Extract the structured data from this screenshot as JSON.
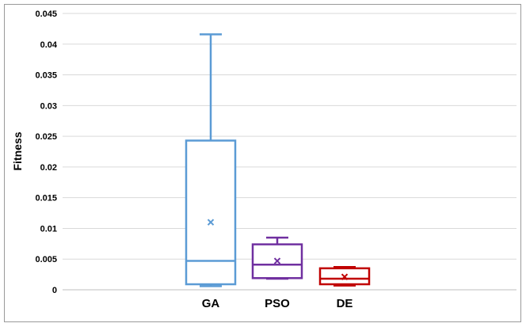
{
  "chart_data": {
    "type": "box",
    "title": "",
    "xlabel": "",
    "ylabel": "Fitness",
    "ylim": [
      0,
      0.045
    ],
    "yticks": [
      "0",
      "0.005",
      "0.01",
      "0.015",
      "0.02",
      "0.025",
      "0.03",
      "0.035",
      "0.04",
      "0.045"
    ],
    "grid": true,
    "categories": [
      "GA",
      "PSO",
      "DE"
    ],
    "boxes": [
      {
        "name": "GA",
        "color": "#5b9bd5",
        "whisker_low": 0.0006,
        "q1": 0.0009,
        "median": 0.0047,
        "q3": 0.0243,
        "whisker_high": 0.0416,
        "mean": 0.011
      },
      {
        "name": "PSO",
        "color": "#7030a0",
        "whisker_low": 0.0018,
        "q1": 0.0019,
        "median": 0.0041,
        "q3": 0.0074,
        "whisker_high": 0.0085,
        "mean": 0.0047
      },
      {
        "name": "DE",
        "color": "#c00000",
        "whisker_low": 0.0007,
        "q1": 0.0009,
        "median": 0.0018,
        "q3": 0.0035,
        "whisker_high": 0.0037,
        "mean": 0.0021
      }
    ]
  }
}
